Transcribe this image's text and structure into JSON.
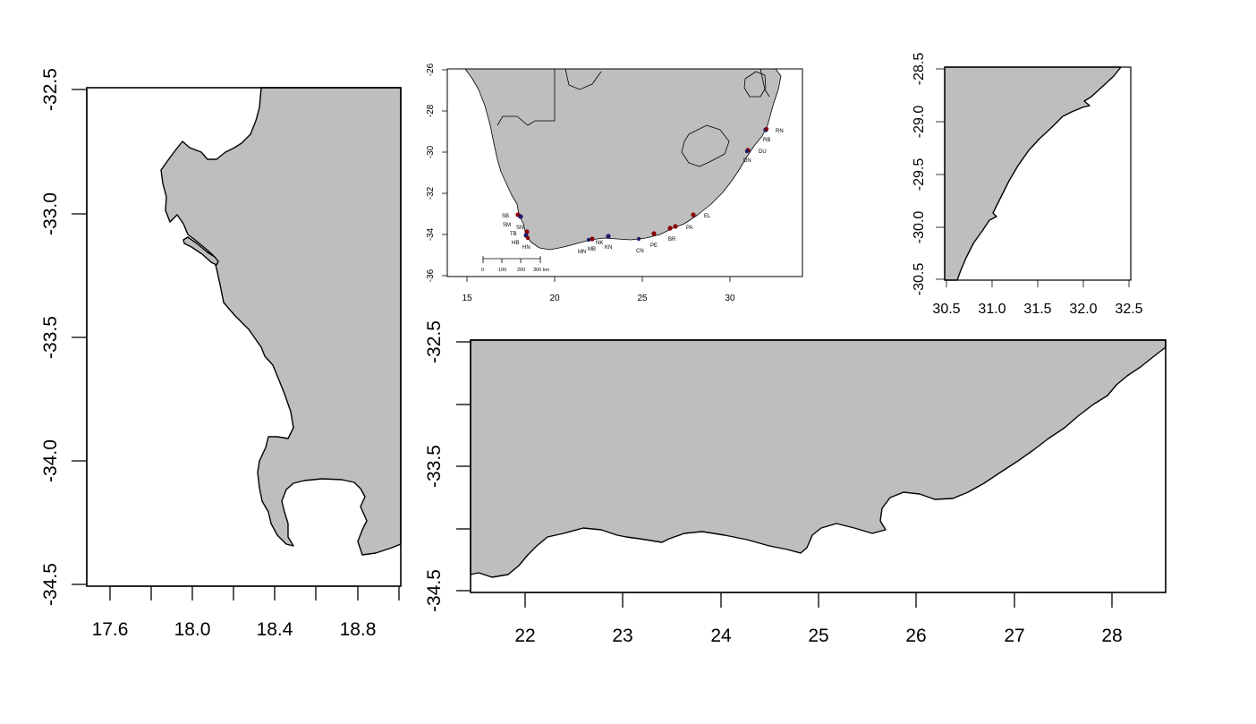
{
  "panels": {
    "cape_peninsula": {
      "x_ticks": [
        "17.6",
        "18.0",
        "18.4",
        "18.8"
      ],
      "y_ticks": [
        "-32.5",
        "-33.0",
        "-33.5",
        "-34.0",
        "-34.5"
      ]
    },
    "overview": {
      "x_ticks": [
        "15",
        "20",
        "25",
        "30"
      ],
      "y_ticks": [
        "-26",
        "-28",
        "-30",
        "-32",
        "-34",
        "-36"
      ],
      "scale_labels": [
        "0",
        "100",
        "200",
        "300 km"
      ],
      "sites": [
        {
          "code": "RN",
          "color": "#8b0000"
        },
        {
          "code": "RB",
          "color": "#1a1a6e"
        },
        {
          "code": "DU",
          "color": "#8b0000"
        },
        {
          "code": "DN",
          "color": "#1a1a6e"
        },
        {
          "code": "EL",
          "color": "#8b0000"
        },
        {
          "code": "PA",
          "color": "#8b0000"
        },
        {
          "code": "BR",
          "color": "#8b0000"
        },
        {
          "code": "PE",
          "color": "#8b0000"
        },
        {
          "code": "CN",
          "color": "#1a1a6e"
        },
        {
          "code": "KN",
          "color": "#1a1a6e"
        },
        {
          "code": "NK",
          "color": "#8b0000"
        },
        {
          "code": "MB",
          "color": "#8b0000"
        },
        {
          "code": "MN",
          "color": "#1a1a6e"
        },
        {
          "code": "SB",
          "color": "#8b0000"
        },
        {
          "code": "SM",
          "color": "#1a1a6e"
        },
        {
          "code": "SN",
          "color": "#8b0000"
        },
        {
          "code": "TB",
          "color": "#1a1a6e"
        },
        {
          "code": "HB",
          "color": "#8b0000"
        },
        {
          "code": "HN",
          "color": "#1a1a6e"
        }
      ]
    },
    "kzn_coast": {
      "x_ticks": [
        "30.5",
        "31.0",
        "31.5",
        "32.0",
        "32.5"
      ],
      "y_ticks": [
        "-28.5",
        "-29.0",
        "-29.5",
        "-30.0",
        "-30.5"
      ]
    },
    "south_coast": {
      "x_ticks": [
        "22",
        "23",
        "24",
        "25",
        "26",
        "27",
        "28"
      ],
      "y_ticks": [
        "-32.5",
        "-33.5",
        "-34.5"
      ]
    }
  }
}
